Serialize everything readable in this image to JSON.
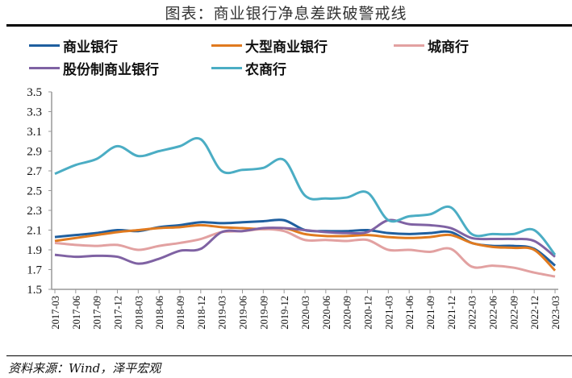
{
  "title": "图表：商业银行净息差跌破警戒线",
  "source": "资料来源：Wind，泽平宏观",
  "chart_data": {
    "type": "line",
    "title": "图表：商业银行净息差跌破警戒线",
    "xlabel": "",
    "ylabel": "",
    "ylim": [
      1.5,
      3.5
    ],
    "yticks": [
      "1.5",
      "1.7",
      "1.9",
      "2.1",
      "2.3",
      "2.5",
      "2.7",
      "2.9",
      "3.1",
      "3.3",
      "3.5"
    ],
    "grid": false,
    "legend": "top",
    "categories": [
      "2017-03",
      "2017-06",
      "2017-09",
      "2017-12",
      "2018-03",
      "2018-06",
      "2018-09",
      "2018-12",
      "2019-03",
      "2019-06",
      "2019-09",
      "2019-12",
      "2020-03",
      "2020-06",
      "2020-09",
      "2020-12",
      "2021-03",
      "2021-06",
      "2021-09",
      "2021-12",
      "2022-03",
      "2022-06",
      "2022-09",
      "2022-12",
      "2023-03"
    ],
    "series": [
      {
        "name": "商业银行",
        "color": "#1f5f9f",
        "values": [
          2.03,
          2.05,
          2.07,
          2.1,
          2.09,
          2.13,
          2.15,
          2.18,
          2.17,
          2.18,
          2.19,
          2.2,
          2.1,
          2.09,
          2.09,
          2.1,
          2.07,
          2.06,
          2.07,
          2.08,
          1.97,
          1.94,
          1.94,
          1.91,
          1.74
        ]
      },
      {
        "name": "大型商业银行",
        "color": "#e07a1f",
        "values": [
          1.99,
          2.02,
          2.05,
          2.08,
          2.1,
          2.12,
          2.13,
          2.15,
          2.13,
          2.12,
          2.11,
          2.12,
          2.06,
          2.04,
          2.04,
          2.05,
          2.03,
          2.02,
          2.03,
          2.05,
          1.97,
          1.93,
          1.92,
          1.9,
          1.69
        ]
      },
      {
        "name": "城商行",
        "color": "#e2a1a1",
        "values": [
          1.97,
          1.95,
          1.94,
          1.95,
          1.9,
          1.94,
          1.97,
          2.01,
          2.08,
          2.09,
          2.11,
          2.09,
          2.0,
          2.0,
          1.99,
          2.0,
          1.9,
          1.9,
          1.88,
          1.91,
          1.73,
          1.74,
          1.72,
          1.67,
          1.63
        ]
      },
      {
        "name": "股份制商业银行",
        "color": "#7f62a3",
        "values": [
          1.85,
          1.83,
          1.84,
          1.83,
          1.76,
          1.81,
          1.89,
          1.91,
          2.08,
          2.09,
          2.12,
          2.12,
          2.1,
          2.08,
          2.07,
          2.08,
          2.2,
          2.16,
          2.15,
          2.12,
          2.02,
          2.01,
          2.01,
          1.99,
          1.83
        ]
      },
      {
        "name": "农商行",
        "color": "#4badc4",
        "values": [
          2.67,
          2.76,
          2.82,
          2.95,
          2.85,
          2.9,
          2.95,
          3.02,
          2.7,
          2.71,
          2.73,
          2.81,
          2.45,
          2.42,
          2.43,
          2.48,
          2.2,
          2.24,
          2.26,
          2.33,
          2.06,
          2.06,
          2.06,
          2.1,
          1.85
        ]
      }
    ]
  }
}
